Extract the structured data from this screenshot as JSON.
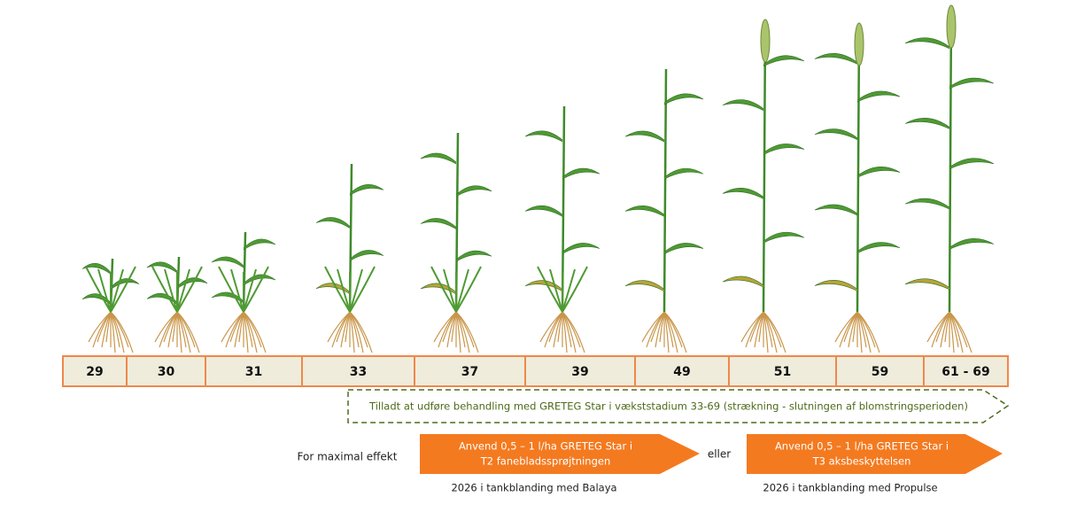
{
  "stages": [
    "29",
    "30",
    "31",
    "33",
    "37",
    "39",
    "49",
    "51",
    "59",
    "61 - 69"
  ],
  "permitted_note": "Tilladt at udføre behandling med GRETEG Star i vækststadium 33-69 (strækning - slutningen af blomstringsperioden)",
  "lead_text": "For maximal effekt",
  "treatments": [
    {
      "lines": [
        "Anvend 0,5 – 1 l/ha GRETEG Star i",
        "T2 fanebladssprøjtningen"
      ],
      "note": "2026 i tankblanding med Balaya"
    },
    {
      "lines": [
        "Anvend 0,5 – 1 l/ha GRETEG Star i",
        "T3 aksbeskyttelsen"
      ],
      "note": "2026 i tankblanding med Propulse"
    }
  ],
  "connector": "eller"
}
